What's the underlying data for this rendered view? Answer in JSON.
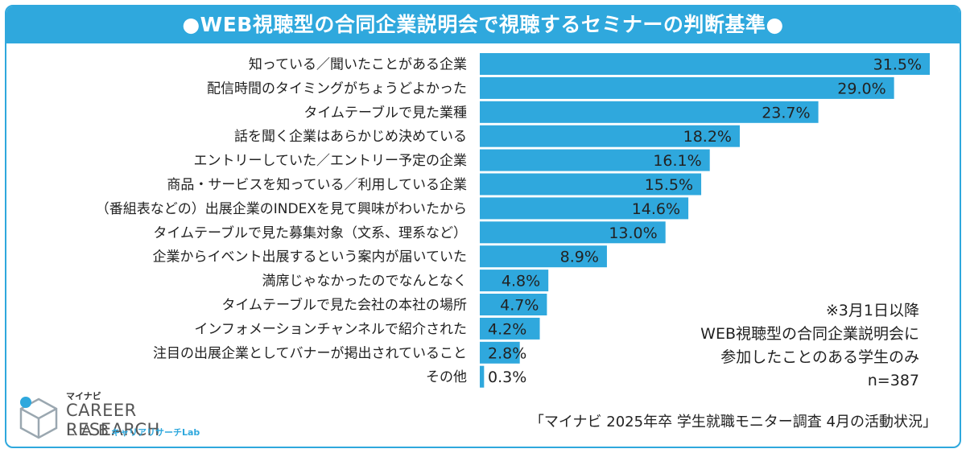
{
  "chart_data": {
    "type": "bar",
    "orientation": "horizontal",
    "title": "●WEB視聴型の合同企業説明会で視聴するセミナーの判断基準●",
    "categories": [
      "知っている／聞いたことがある企業",
      "配信時間のタイミングがちょうどよかった",
      "タイムテーブルで見た業種",
      "話を聞く企業はあらかじめ決めている",
      "エントリーしていた／エントリー予定の企業",
      "商品・サービスを知っている／利用している企業",
      "（番組表などの）出展企業のINDEXを見て興味がわいたから",
      "タイムテーブルで見た募集対象（文系、理系など）",
      "企業からイベント出展するという案内が届いていた",
      "満席じゃなかったのでなんとなく",
      "タイムテーブルで見た会社の本社の場所",
      "インフォメーションチャンネルで紹介された",
      "注目の出展企業としてバナーが掲出されていること",
      "その他"
    ],
    "values": [
      31.5,
      29.0,
      23.7,
      18.2,
      16.1,
      15.5,
      14.6,
      13.0,
      8.9,
      4.8,
      4.7,
      4.2,
      2.8,
      0.3
    ],
    "value_labels": [
      "31.5%",
      "29.0%",
      "23.7%",
      "18.2%",
      "16.1%",
      "15.5%",
      "14.6%",
      "13.0%",
      "8.9%",
      "4.8%",
      "4.7%",
      "4.2%",
      "2.8%",
      "0.3%"
    ],
    "xlim": [
      0,
      35
    ],
    "grid": false,
    "bar_color": "#2fa8dd"
  },
  "notes": [
    "※3月1日以降",
    "WEB視聴型の合同企業説明会に",
    "参加したことのある学生のみ",
    "n=387"
  ],
  "source": "「マイナビ 2025年卒 学生就職モニター調査 4月の活動状況」",
  "logo": {
    "top_small": "マイナビ",
    "main": "CAREER RESEARCH",
    "lab": "LAB",
    "kana": "キャリアリサーチLab"
  }
}
